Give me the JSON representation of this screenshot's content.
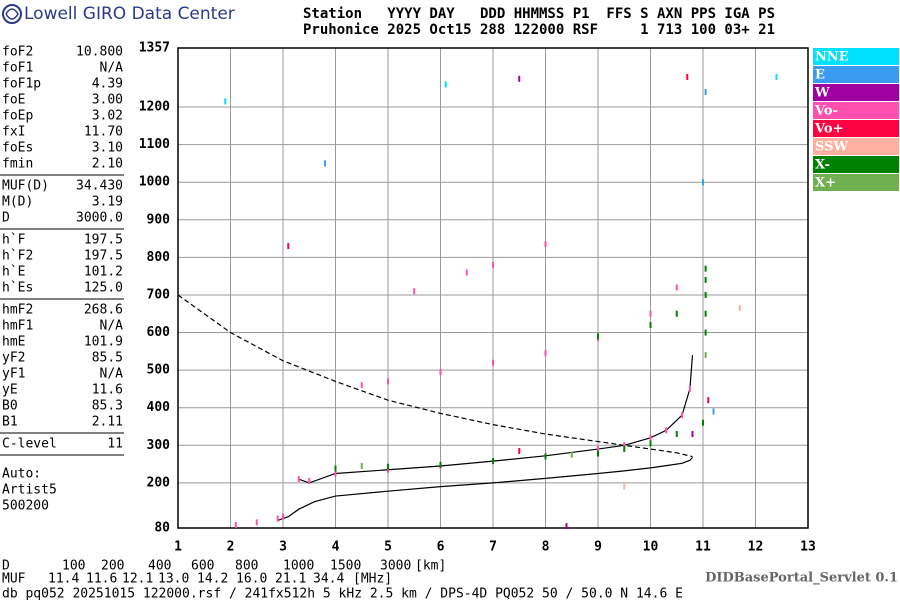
{
  "header": {
    "logo_text": "Lowell GIRO Data Center",
    "columns": "Station   YYYY DAY   DDD HHMMSS P1  FFS S AXN PPS IGA PS",
    "values": "Pruhonice 2025 Oct15 288 122000 RSF     1 713 100 03+ 21"
  },
  "parameters": [
    [
      [
        "foF2",
        "10.800"
      ],
      [
        "foF1",
        "N/A"
      ],
      [
        "foF1p",
        "4.39"
      ],
      [
        "foE",
        "3.00"
      ],
      [
        "foEp",
        "3.02"
      ],
      [
        "fxI",
        "11.70"
      ],
      [
        "foEs",
        "3.10"
      ],
      [
        "fmin",
        "2.10"
      ]
    ],
    [
      [
        "MUF(D)",
        "34.430"
      ],
      [
        "M(D)",
        "3.19"
      ],
      [
        "D",
        "3000.0"
      ]
    ],
    [
      [
        "h`F",
        "197.5"
      ],
      [
        "h`F2",
        "197.5"
      ],
      [
        "h`E",
        "101.2"
      ],
      [
        "h`Es",
        "125.0"
      ]
    ],
    [
      [
        "hmF2",
        "268.6"
      ],
      [
        "hmF1",
        "N/A"
      ],
      [
        "hmE",
        "101.9"
      ],
      [
        "yF2",
        "85.5"
      ],
      [
        "yF1",
        "N/A"
      ],
      [
        "yE",
        "11.6"
      ],
      [
        "B0",
        "85.3"
      ],
      [
        "B1",
        "2.11"
      ]
    ],
    [
      [
        "C-level",
        "11"
      ]
    ]
  ],
  "autoscaling": [
    "Auto:",
    "Artist5",
    "500200"
  ],
  "distance_row": {
    "label": "D",
    "values": [
      "100",
      "200",
      "400",
      "600",
      "800",
      "1000",
      "1500",
      "3000"
    ],
    "unit": "[km]"
  },
  "muf_row": {
    "label": "MUF",
    "values": [
      "11.4",
      "11.6",
      "12.1",
      "13.0",
      "14.2",
      "16.0",
      "21.1",
      "34.4"
    ],
    "unit": "[MHz]"
  },
  "footer": {
    "servlet": "DIDBasePortal_Servlet 0.1",
    "info": "db pq052 20251015 122000.rsf / 241fx512h 5 kHz 2.5 km / DPS-4D PQ052 50 / 50.0 N 14.6 E"
  },
  "chart_data": {
    "type": "scatter",
    "xlim": [
      1,
      13
    ],
    "xticks": [
      1,
      2,
      3,
      4,
      5,
      6,
      7,
      8,
      9,
      10,
      11,
      12,
      13
    ],
    "ylim": [
      80,
      1357
    ],
    "yticks": [
      80,
      200,
      300,
      400,
      500,
      600,
      700,
      800,
      900,
      1000,
      1100,
      1200,
      1357
    ],
    "grid": true,
    "series": [
      {
        "name": "NNE",
        "color": "#00e0ff",
        "x": [
          1.9,
          12.4,
          6.1
        ],
        "values": [
          1215,
          1280,
          1260
        ]
      },
      {
        "name": "E",
        "color": "#3a9cf0",
        "x": [
          11.2,
          11.05,
          11.0,
          3.8
        ],
        "values": [
          390,
          1240,
          1000,
          1050
        ]
      },
      {
        "name": "W",
        "color": "#a000a0",
        "x": [
          7.5,
          10.8,
          8.4
        ],
        "values": [
          1275,
          330,
          85
        ]
      },
      {
        "name": "Vo-",
        "color": "#ff50b0",
        "x": [
          2.1,
          2.5,
          2.9,
          3.0,
          3.3,
          3.5,
          4,
          5,
          6,
          7,
          8,
          9,
          9.5,
          10,
          10.3,
          10.6,
          10.75,
          4.5,
          5,
          6,
          7,
          8,
          9,
          10,
          10.5,
          5.5,
          6.5,
          7,
          8
        ],
        "values": [
          88,
          95,
          105,
          110,
          210,
          205,
          225,
          235,
          245,
          258,
          272,
          290,
          300,
          320,
          340,
          380,
          450,
          460,
          470,
          495,
          520,
          545,
          585,
          650,
          720,
          710,
          760,
          780,
          835
        ]
      },
      {
        "name": "Vo+",
        "color": "#ff0040",
        "x": [
          3.1,
          7.5,
          10.7,
          11.1
        ],
        "values": [
          830,
          285,
          1280,
          420
        ]
      },
      {
        "name": "SSW",
        "color": "#ffb0a0",
        "x": [
          11.7,
          9.5
        ],
        "values": [
          665,
          190
        ]
      },
      {
        "name": "X-",
        "color": "#008000",
        "x": [
          4,
          5,
          6,
          7,
          8,
          9,
          9.5,
          10,
          10.5,
          11,
          9,
          10,
          10.5,
          11.05,
          11.05,
          11.05,
          11.05,
          11.05
        ],
        "values": [
          238,
          243,
          248,
          258,
          270,
          278,
          290,
          305,
          330,
          360,
          590,
          620,
          650,
          600,
          650,
          700,
          740,
          770
        ]
      },
      {
        "name": "X+",
        "color": "#70b050",
        "x": [
          4.5,
          8.5,
          11.05
        ],
        "values": [
          245,
          275,
          540
        ]
      }
    ],
    "lines": [
      {
        "style": "solid",
        "x": [
          2.9,
          3.1,
          3.3,
          3.6,
          4,
          5,
          6,
          7,
          8,
          9,
          9.5,
          10,
          10.3,
          10.6,
          10.75,
          10.8
        ],
        "values": [
          100,
          110,
          130,
          150,
          165,
          178,
          190,
          200,
          212,
          225,
          232,
          240,
          246,
          252,
          260,
          268
        ]
      },
      {
        "style": "solid",
        "x": [
          3.3,
          3.5,
          4,
          5,
          6,
          7,
          8,
          9,
          9.5,
          10,
          10.3,
          10.6,
          10.75,
          10.8
        ],
        "values": [
          210,
          200,
          225,
          235,
          245,
          258,
          272,
          290,
          300,
          320,
          340,
          380,
          450,
          540
        ]
      },
      {
        "style": "dashed",
        "x": [
          1,
          2,
          3,
          4,
          5,
          6,
          7,
          8,
          9,
          10,
          10.5,
          10.8
        ],
        "values": [
          700,
          600,
          525,
          470,
          420,
          385,
          355,
          330,
          310,
          290,
          280,
          270
        ]
      }
    ]
  }
}
